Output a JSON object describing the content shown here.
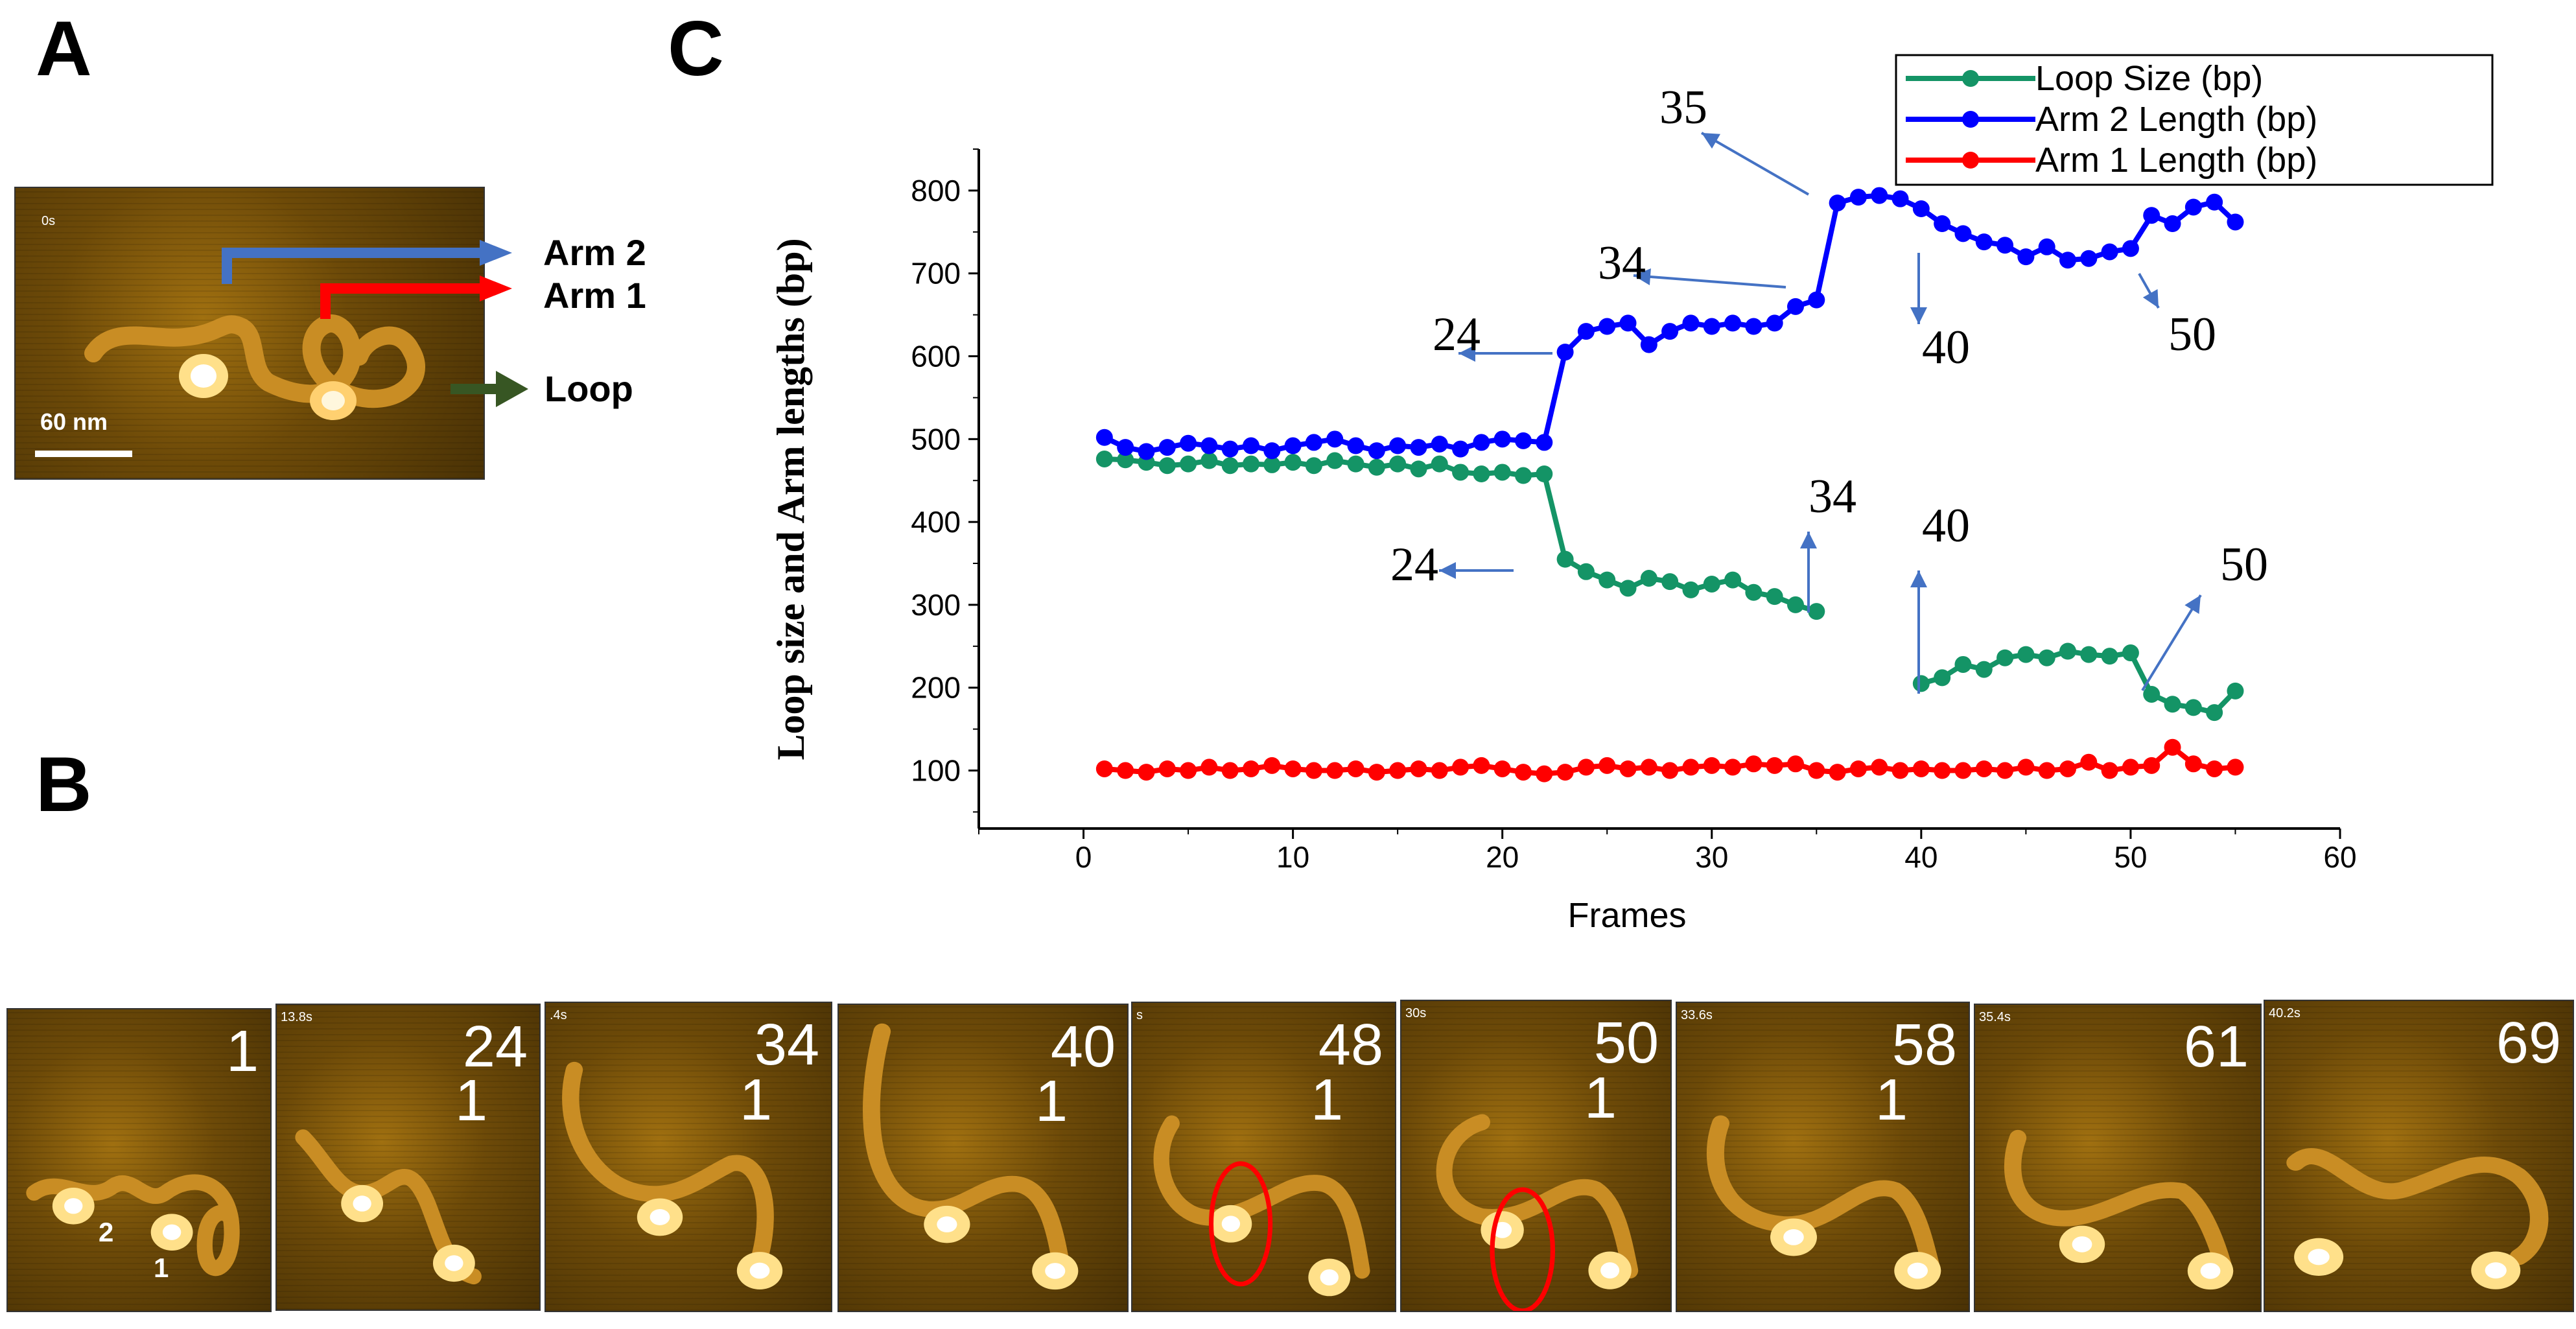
{
  "panels": {
    "a": "A",
    "b": "B",
    "c": "C"
  },
  "panel_a": {
    "time": "0s",
    "scale": "60 nm",
    "arm2": "Arm 2",
    "arm1": "Arm 1",
    "loop": "Loop",
    "colors": {
      "arm2": "#4472c4",
      "arm1": "#ff0000",
      "loop": "#375623"
    }
  },
  "panel_b": {
    "frames": [
      {
        "num": "1",
        "time": "",
        "site": "",
        "extra": [
          "2",
          "1"
        ]
      },
      {
        "num": "24",
        "time": "13.8s",
        "site": "1"
      },
      {
        "num": "34",
        "time": ".4s",
        "site": "1"
      },
      {
        "num": "40",
        "time": "",
        "site": "1"
      },
      {
        "num": "48",
        "time": "s",
        "site": "1"
      },
      {
        "num": "50",
        "time": "30s",
        "site": "1"
      },
      {
        "num": "58",
        "time": "33.6s",
        "site": "1"
      },
      {
        "num": "61",
        "time": "35.4s",
        "site": ""
      },
      {
        "num": "69",
        "time": "40.2s",
        "site": ""
      }
    ]
  },
  "chart_data": {
    "type": "line",
    "xlabel": "Frames",
    "ylabel": "Loop size and Arm lengths (bp)",
    "xlim": [
      -5,
      60
    ],
    "ylim": [
      30,
      850
    ],
    "xticks": [
      0,
      10,
      20,
      30,
      40,
      50,
      60
    ],
    "yticks": [
      100,
      200,
      300,
      400,
      500,
      600,
      700,
      800
    ],
    "legend_position": "top-right",
    "series": [
      {
        "name": "Loop Size (bp)",
        "color": "#149466",
        "x": [
          1,
          2,
          3,
          4,
          5,
          6,
          7,
          8,
          9,
          10,
          11,
          12,
          13,
          14,
          15,
          16,
          17,
          18,
          19,
          20,
          21,
          22,
          23,
          24,
          25,
          26,
          27,
          28,
          29,
          30,
          31,
          32,
          33,
          34,
          35
        ],
        "values": [
          476,
          475,
          472,
          468,
          470,
          474,
          468,
          470,
          469,
          472,
          468,
          474,
          470,
          466,
          470,
          464,
          470,
          460,
          458,
          460,
          456,
          458,
          355,
          340,
          330,
          320,
          332,
          328,
          318,
          325,
          330,
          315,
          310,
          300,
          292
        ]
      },
      {
        "name": "Loop Size (bp) continued",
        "color": "#149466",
        "x": [
          40,
          41,
          42,
          43,
          44,
          45,
          46,
          47,
          48,
          49,
          50,
          51,
          52,
          53,
          54,
          55
        ],
        "values": [
          205,
          212,
          228,
          222,
          236,
          240,
          236,
          244,
          240,
          238,
          242,
          192,
          180,
          176,
          170,
          196
        ]
      },
      {
        "name": "Arm 2 Length (bp)",
        "color": "#0000ff",
        "x": [
          1,
          2,
          3,
          4,
          5,
          6,
          7,
          8,
          9,
          10,
          11,
          12,
          13,
          14,
          15,
          16,
          17,
          18,
          19,
          20,
          21,
          22,
          23,
          24,
          25,
          26,
          27,
          28,
          29,
          30,
          31,
          32,
          33,
          34,
          35,
          36,
          37,
          38,
          39,
          40,
          41,
          42,
          43,
          44,
          45,
          46,
          47,
          48,
          49,
          50,
          51,
          52,
          53,
          54,
          55
        ],
        "values": [
          502,
          490,
          485,
          490,
          495,
          492,
          488,
          492,
          486,
          492,
          496,
          500,
          492,
          486,
          492,
          490,
          494,
          488,
          496,
          500,
          498,
          496,
          605,
          630,
          636,
          640,
          614,
          630,
          640,
          636,
          640,
          636,
          640,
          660,
          668,
          785,
          792,
          794,
          790,
          778,
          760,
          748,
          738,
          734,
          720,
          732,
          716,
          718,
          726,
          730,
          770,
          760,
          780,
          786,
          762
        ]
      },
      {
        "name": "Arm 1 Length (bp)",
        "color": "#ff0000",
        "x": [
          1,
          2,
          3,
          4,
          5,
          6,
          7,
          8,
          9,
          10,
          11,
          12,
          13,
          14,
          15,
          16,
          17,
          18,
          19,
          20,
          21,
          22,
          23,
          24,
          25,
          26,
          27,
          28,
          29,
          30,
          31,
          32,
          33,
          34,
          35,
          36,
          37,
          38,
          39,
          40,
          41,
          42,
          43,
          44,
          45,
          46,
          47,
          48,
          49,
          50,
          51,
          52,
          53,
          54,
          55
        ],
        "values": [
          102,
          100,
          98,
          102,
          100,
          104,
          100,
          102,
          106,
          102,
          100,
          100,
          102,
          98,
          100,
          102,
          100,
          104,
          106,
          102,
          98,
          96,
          98,
          104,
          106,
          102,
          104,
          100,
          104,
          106,
          104,
          108,
          106,
          108,
          100,
          98,
          102,
          104,
          100,
          102,
          100,
          100,
          102,
          100,
          104,
          100,
          102,
          110,
          100,
          104,
          106,
          128,
          108,
          102,
          104
        ]
      }
    ],
    "legend": [
      "Loop Size (bp)",
      "Arm 2 Length (bp)",
      "Arm 1 Length (bp)"
    ],
    "annotations": [
      {
        "text": "35",
        "color": "#4472c4"
      },
      {
        "text": "34",
        "color": "#4472c4"
      },
      {
        "text": "24",
        "color": "#4472c4"
      },
      {
        "text": "40",
        "color": "#4472c4"
      },
      {
        "text": "50",
        "color": "#4472c4"
      },
      {
        "text": "34",
        "color": "#4472c4"
      },
      {
        "text": "24",
        "color": "#4472c4"
      },
      {
        "text": "40",
        "color": "#4472c4"
      },
      {
        "text": "50",
        "color": "#4472c4"
      }
    ]
  }
}
